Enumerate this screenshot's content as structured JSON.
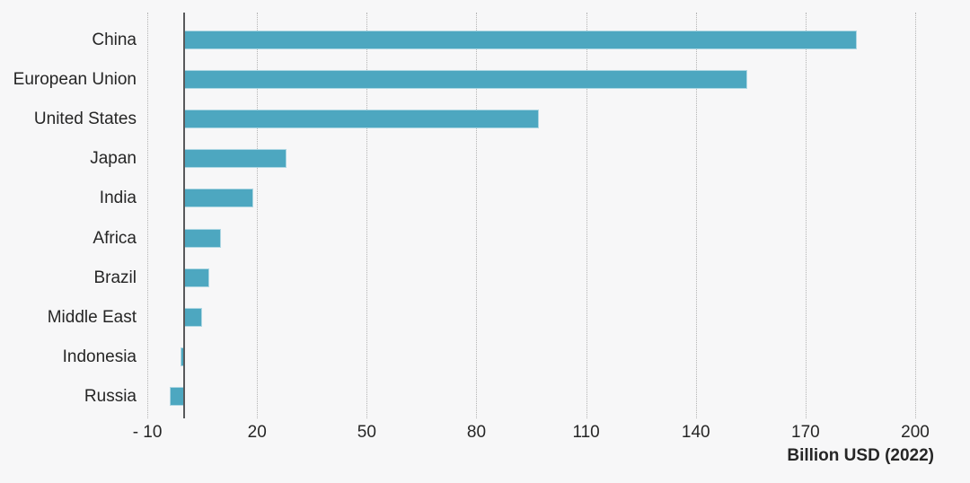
{
  "colors": {
    "background": "#f7f7f8",
    "bar": "#4da7c0",
    "axis": "#58595b",
    "grid": "#b4b4b4",
    "text": "#262626"
  },
  "chart_data": {
    "type": "bar",
    "orientation": "horizontal",
    "title": "",
    "xlabel": "Billion USD (2022)",
    "ylabel": "",
    "categories": [
      "China",
      "European Union",
      "United States",
      "Japan",
      "India",
      "Africa",
      "Brazil",
      "Middle East",
      "Indonesia",
      "Russia"
    ],
    "values": [
      184,
      154,
      97,
      28,
      19,
      10,
      7,
      5,
      -1,
      -4
    ],
    "x_ticks": [
      -10,
      20,
      50,
      80,
      110,
      140,
      170,
      200
    ],
    "x_tick_labels": [
      "- 10",
      "20",
      "50",
      "80",
      "110",
      "140",
      "170",
      "200"
    ],
    "xlim": [
      -14,
      205
    ],
    "grid": "vertical-dotted",
    "legend": "none"
  }
}
